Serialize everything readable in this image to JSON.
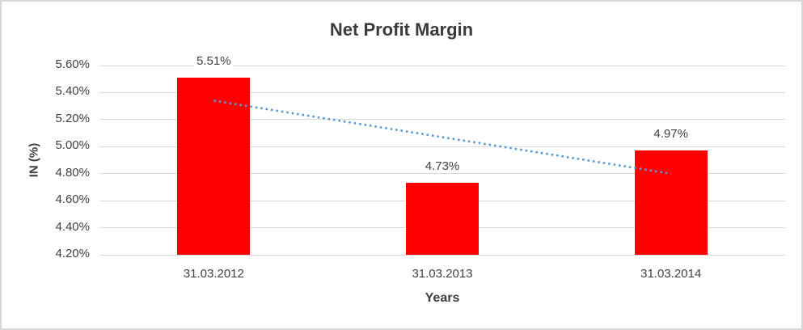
{
  "chart_data": {
    "type": "bar",
    "title": "Net Profit Margin",
    "xlabel": "Years",
    "ylabel": "IN (%)",
    "categories": [
      "31.03.2012",
      "31.03.2013",
      "31.03.2014"
    ],
    "values": [
      5.51,
      4.73,
      4.97
    ],
    "data_labels": [
      "5.51%",
      "4.73%",
      "4.97%"
    ],
    "ylim": [
      4.2,
      5.6
    ],
    "y_ticks": [
      {
        "label": "5.60%",
        "value": 5.6
      },
      {
        "label": "5.40%",
        "value": 5.4
      },
      {
        "label": "5.20%",
        "value": 5.2
      },
      {
        "label": "5.00%",
        "value": 5.0
      },
      {
        "label": "4.80%",
        "value": 4.8
      },
      {
        "label": "4.60%",
        "value": 4.6
      },
      {
        "label": "4.40%",
        "value": 4.4
      },
      {
        "label": "4.20%",
        "value": 4.2
      }
    ],
    "grid": true,
    "legend": "none",
    "bar_color": "#FF0000",
    "gridline_color": "#D9D9D9",
    "text_color": "#404040",
    "title_color": "#3B3B3B",
    "trendline": {
      "type": "linear",
      "style": "dotted",
      "color": "#5B9BD5",
      "points": [
        {
          "x": 0,
          "value": 5.34
        },
        {
          "x": 2,
          "value": 4.8
        }
      ]
    }
  }
}
